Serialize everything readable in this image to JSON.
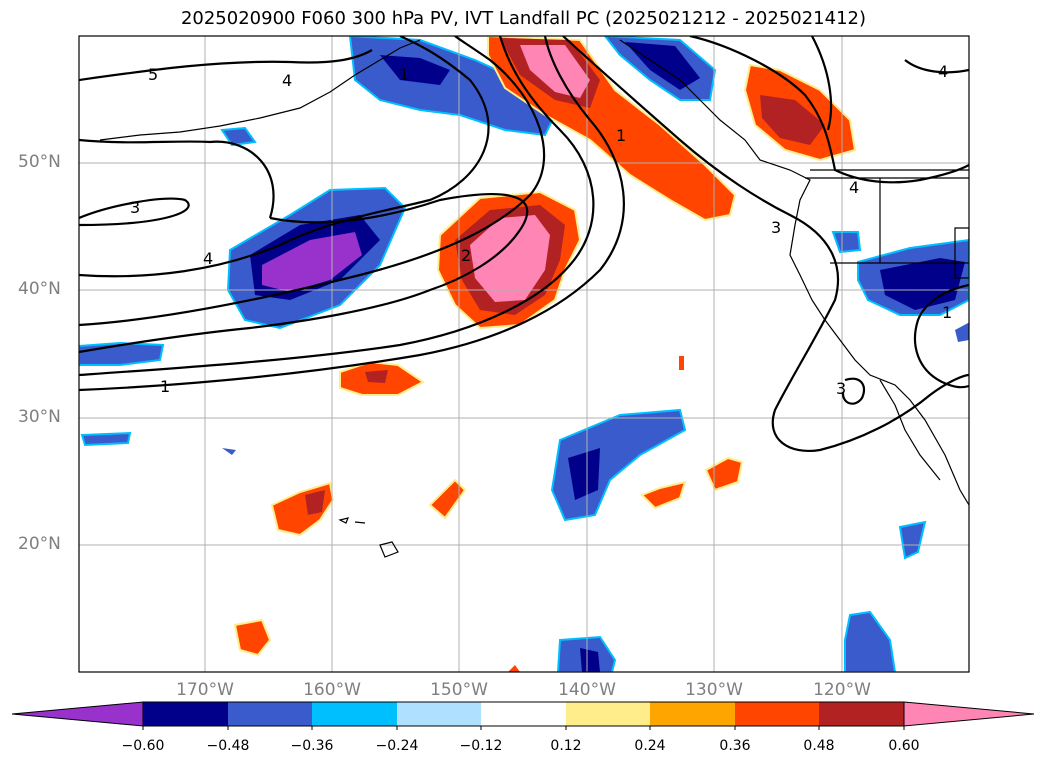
{
  "title": "2025020900 F060 300 hPa PV, IVT Landfall PC (2025021212 - 2025021412)",
  "lat_labels": [
    "50°N",
    "40°N",
    "30°N",
    "20°N"
  ],
  "lon_labels": [
    "170°W",
    "160°W",
    "150°W",
    "140°W",
    "130°W",
    "120°W"
  ],
  "contour_labels": [
    "5",
    "4",
    "3",
    "4",
    "2",
    "1",
    "1",
    "3",
    "4",
    "4",
    "1",
    "3",
    "1"
  ],
  "colorbar": {
    "ticks": [
      "−0.60",
      "−0.48",
      "−0.36",
      "−0.24",
      "−0.12",
      "0.12",
      "0.24",
      "0.36",
      "0.48",
      "0.60"
    ],
    "colors": [
      "#9932cc",
      "#00008b",
      "#3a5bcc",
      "#00bfff",
      "#b0e0ff",
      "#ffffff",
      "#ffec8b",
      "#ffa500",
      "#ff4500",
      "#b22222",
      "#ff85b4"
    ]
  }
}
